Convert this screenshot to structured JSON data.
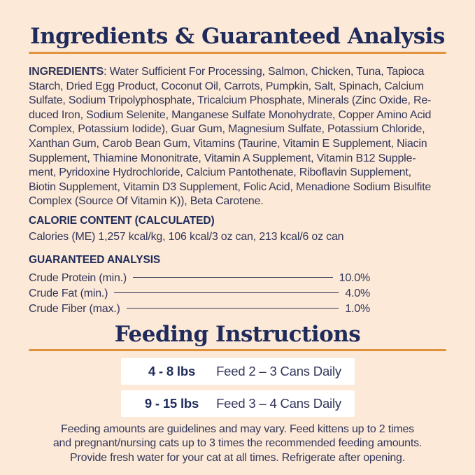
{
  "theme": {
    "background": "#fce9d7",
    "accent_orange": "#e2913c",
    "heading_navy": "#1f2b5b",
    "body_navy": "#33375a",
    "row_white": "#ffffff"
  },
  "ingredients_section": {
    "title": "Ingredients & Guaranteed Analysis",
    "ingredients_label": "INGREDIENTS",
    "ingredients_first_line_rest": ": Water Sufficient For Processing, Salmon, Chicken, Tuna, Tapioca",
    "ingredients_lines": [
      "Starch, Dried Egg Product, Coconut Oil, Carrots, Pumpkin, Salt, Spinach, Calcium",
      "Sulfate, Sodium Tripolyphosphate, Tricalcium Phosphate, Minerals (Zinc Oxide, Re-",
      "duced Iron, Sodium Selenite, Manganese Sulfate Monohydrate, Copper Amino Acid",
      "Complex, Potassium Iodide), Guar Gum, Magnesium Sulfate, Potassium Chloride,",
      "Xanthan Gum, Carob Bean Gum, Vitamins (Taurine, Vitamin E Supplement, Niacin",
      "Supplement, Thiamine Mononitrate, Vitamin A Supplement, Vitamin B12 Supple-",
      "ment, Pyridoxine Hydrochloride, Calcium Pantothenate, Riboflavin Supplement,",
      "Biotin Supplement, Vitamin D3 Supplement, Folic Acid, Menadione Sodium Bisulfite",
      "Complex (Source Of Vitamin K)), Beta Carotene."
    ],
    "calorie_heading": "CALORIE CONTENT (CALCULATED)",
    "calorie_text": "Calories (ME) 1,257 kcal/kg, 106 kcal/3 oz can, 213 kcal/6 oz can",
    "analysis_heading": "GUARANTEED ANALYSIS",
    "analysis_rows": [
      {
        "label": "Crude Protein (min.)",
        "value": "10.0%"
      },
      {
        "label": "Crude Fat (min.)",
        "value": "4.0%"
      },
      {
        "label": "Crude Fiber (max.)",
        "value": "1.0%"
      }
    ]
  },
  "feeding_section": {
    "title": "Feeding Instructions",
    "rows": [
      {
        "weight": "4 - 8 lbs",
        "amount": "Feed 2 – 3 Cans Daily"
      },
      {
        "weight": "9 - 15 lbs",
        "amount": "Feed 3 –  4 Cans Daily"
      }
    ],
    "notes_lines": [
      "Feeding amounts are guidelines and may vary. Feed kittens up to 2 times",
      "and pregnant/nursing cats up to 3 times the recommended feeding amounts.",
      "Provide fresh water for your cat at all times. Refrigerate after opening."
    ]
  }
}
